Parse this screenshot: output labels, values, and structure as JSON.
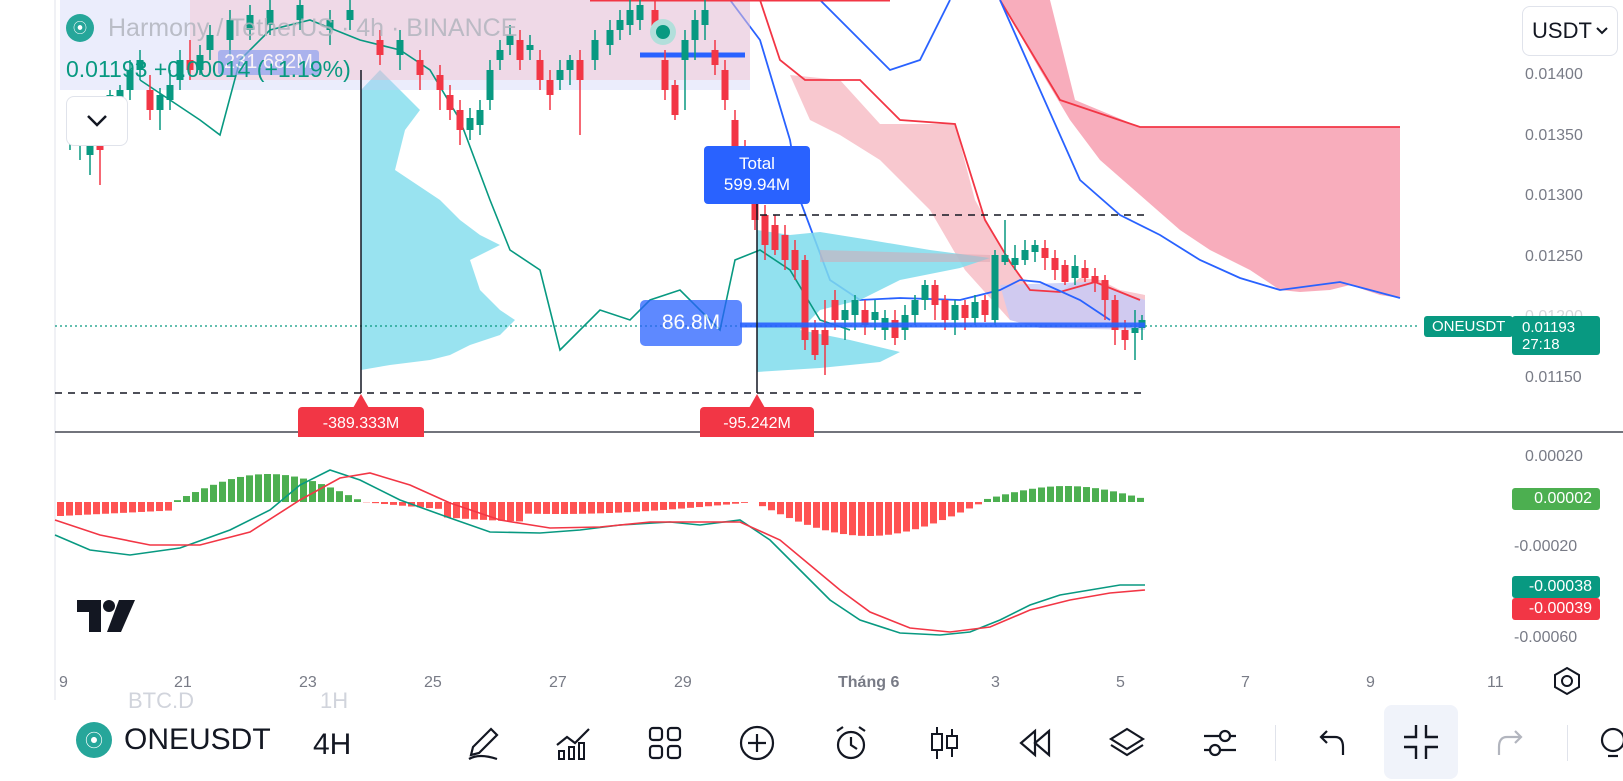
{
  "header": {
    "symbol_line": "Harmony / TetherUS · 4h · BINANCE",
    "price_line": "0.01193 +0.00014 (+1.19%)",
    "volume_badge": "231.682M"
  },
  "currency_button": {
    "label": "USDT",
    "icon": "chevron-down-icon"
  },
  "collapse_button": {
    "icon": "chevron-down-icon"
  },
  "price_axis": {
    "ticks": [
      "0.01400",
      "0.01350",
      "0.01300",
      "0.01250",
      "0.01200",
      "0.01150"
    ],
    "symbol_tag": "ONEUSDT",
    "last_price": "0.01193",
    "countdown": "27:18"
  },
  "macd_axis": {
    "ticks": [
      "0.00020",
      "-0.00020",
      "-0.00060"
    ],
    "histogram_value": "0.00002",
    "macd_value": "-0.00038",
    "signal_value": "-0.00039"
  },
  "time_axis": {
    "ticks": [
      "9",
      "21",
      "23",
      "25",
      "27",
      "29",
      "Tháng 6",
      "3",
      "5",
      "7",
      "9",
      "11"
    ]
  },
  "annotations": {
    "total_label": "Total",
    "total_value": "599.94M",
    "volume_bubble": "86.8M",
    "delta_left": "-389.333M",
    "delta_right": "-95.242M"
  },
  "toolbar": {
    "symbol": "ONEUSDT",
    "timeframe": "4H",
    "ghost_symbol": "BTC.D",
    "ghost_timeframe": "1H",
    "tools": [
      "pencil-icon",
      "indicators-icon",
      "grid-icon",
      "add-icon",
      "alarm-icon",
      "candles-icon",
      "replay-icon",
      "layers-icon",
      "settings-icon",
      "undo-icon",
      "exit-fullscreen-icon",
      "redo-icon",
      "lightbulb-icon"
    ]
  },
  "colors": {
    "up": "#089981",
    "down": "#f23645",
    "cloud_red": "#f7a4b5",
    "cloud_blue": "#c5cbf7",
    "volume_profile": "#7fdcec",
    "accent": "#2962ff"
  }
}
